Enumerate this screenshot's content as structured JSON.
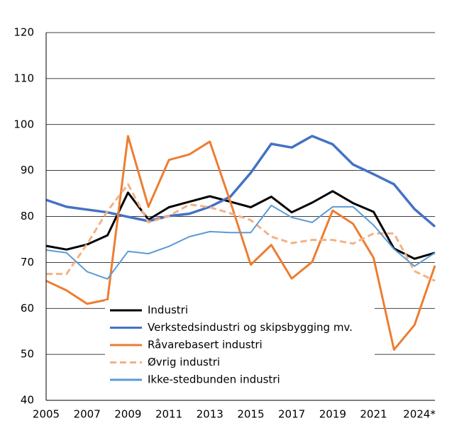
{
  "chart_data": {
    "type": "line",
    "categories": [
      "2005",
      null,
      "2007",
      null,
      "2009",
      null,
      "2011",
      null,
      "2013",
      null,
      "2015",
      null,
      "2017",
      null,
      "2019",
      null,
      "2021",
      null,
      null,
      "2024*"
    ],
    "series": [
      {
        "name": "Industri",
        "color": "#000000",
        "dashed": false,
        "values": [
          73.6,
          72.8,
          73.9,
          75.9,
          85.2,
          79.3,
          82,
          83.2,
          84.4,
          83.2,
          82,
          84.3,
          80.9,
          83,
          85.5,
          82.9,
          81,
          73,
          70.8,
          72.1
        ]
      },
      {
        "name": "Verkstedsindustri og skipsbygging mv.",
        "color": "#4472c4",
        "dashed": false,
        "values": [
          83.6,
          82.1,
          81.5,
          80.9,
          79.9,
          79,
          80.1,
          80.6,
          82.1,
          84.3,
          89.5,
          95.8,
          95,
          97.5,
          95.7,
          91.3,
          89.2,
          87,
          81.6,
          77.8
        ]
      },
      {
        "name": "Råvarebasert industri",
        "color": "#ed7d31",
        "dashed": false,
        "values": [
          66,
          63.9,
          61,
          61.9,
          97.5,
          82.1,
          92.3,
          93.5,
          96.3,
          83.2,
          69.5,
          73.8,
          66.5,
          70.1,
          81.3,
          78.4,
          71,
          51,
          56.4,
          69.3
        ]
      },
      {
        "name": "Øvrig industri",
        "color": "#f4b183",
        "dashed": true,
        "values": [
          67.5,
          67.5,
          74,
          81.2,
          87,
          78.7,
          80.1,
          82.6,
          82,
          80.7,
          79.2,
          75.6,
          74.2,
          74.9,
          74.9,
          74.1,
          76.3,
          76.3,
          68.1,
          66
        ]
      },
      {
        "name": "Ikke-stedbunden industri",
        "color": "#5b9bd5",
        "dashed": false,
        "values": [
          72.7,
          72.1,
          68,
          66.4,
          72.4,
          71.9,
          73.5,
          75.6,
          76.7,
          76.5,
          76.5,
          82.4,
          79.8,
          78.7,
          82.1,
          82.1,
          78.1,
          72.9,
          69.2,
          72.1
        ]
      }
    ],
    "ylim": [
      40,
      120
    ],
    "yticks": [
      40,
      50,
      60,
      70,
      80,
      90,
      100,
      110,
      120
    ],
    "grid": true,
    "legend": "lower left"
  }
}
